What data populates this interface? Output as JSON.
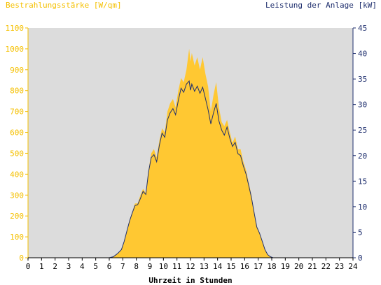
{
  "chart_data": {
    "type": "area",
    "ylabel_left": "Bestrahlungsstärke [W/qm]",
    "ylabel_right": "Leistung der Anlage [kW]",
    "xlabel": "Uhrzeit in Stunden",
    "xlim": [
      0,
      24
    ],
    "ylim_left": [
      0,
      1100
    ],
    "ylim_right": [
      0,
      45
    ],
    "x_ticks": [
      "0",
      "1",
      "2",
      "3",
      "4",
      "5",
      "6",
      "7",
      "8",
      "9",
      "10",
      "11",
      "12",
      "13",
      "14",
      "15",
      "16",
      "17",
      "18",
      "19",
      "20",
      "21",
      "22",
      "23",
      "24"
    ],
    "y_ticks_left": [
      "0",
      "100",
      "200",
      "300",
      "400",
      "500",
      "600",
      "700",
      "800",
      "900",
      "1000",
      "1100"
    ],
    "y_ticks_right": [
      "0",
      "5",
      "10",
      "15",
      "20",
      "25",
      "30",
      "35",
      "40",
      "45"
    ],
    "grid": false,
    "colors": {
      "irradiance": "#ffc832",
      "power": "#1f2f6e",
      "plot_bg": "#dcdcdc",
      "left_axis": "#f5c000",
      "right_axis": "#1f2f6e"
    },
    "series": [
      {
        "name": "Bestrahlungsstärke [W/qm]",
        "axis": "left",
        "x": [
          0,
          6.0,
          6.3,
          6.6,
          6.9,
          7.1,
          7.3,
          7.5,
          7.7,
          7.9,
          8.1,
          8.3,
          8.5,
          8.7,
          8.9,
          9.1,
          9.3,
          9.5,
          9.7,
          9.9,
          10.1,
          10.3,
          10.5,
          10.7,
          10.9,
          11.1,
          11.3,
          11.5,
          11.7,
          11.9,
          12.0,
          12.1,
          12.3,
          12.5,
          12.7,
          12.9,
          13.1,
          13.3,
          13.5,
          13.7,
          13.9,
          14.1,
          14.3,
          14.5,
          14.7,
          14.9,
          15.1,
          15.3,
          15.5,
          15.7,
          15.9,
          16.1,
          16.3,
          16.5,
          16.7,
          16.9,
          17.1,
          17.3,
          17.5,
          17.7,
          17.9,
          18.1,
          18.3,
          18.5,
          24
        ],
        "y": [
          0,
          0,
          5,
          20,
          40,
          80,
          130,
          180,
          220,
          260,
          260,
          300,
          330,
          310,
          420,
          500,
          520,
          480,
          560,
          620,
          600,
          700,
          740,
          760,
          720,
          800,
          860,
          840,
          900,
          1000,
          940,
          980,
          920,
          960,
          900,
          960,
          880,
          820,
          700,
          780,
          840,
          720,
          650,
          630,
          660,
          600,
          550,
          580,
          520,
          520,
          460,
          420,
          360,
          300,
          220,
          150,
          120,
          80,
          40,
          15,
          5,
          0,
          0,
          0,
          0
        ]
      },
      {
        "name": "Leistung der Anlage [kW]",
        "axis": "right",
        "x": [
          0,
          6.0,
          6.3,
          6.6,
          6.9,
          7.1,
          7.3,
          7.5,
          7.7,
          7.9,
          8.1,
          8.3,
          8.5,
          8.7,
          8.9,
          9.1,
          9.3,
          9.5,
          9.7,
          9.9,
          10.1,
          10.3,
          10.5,
          10.7,
          10.9,
          11.1,
          11.3,
          11.5,
          11.7,
          11.9,
          12.0,
          12.1,
          12.3,
          12.5,
          12.7,
          12.9,
          13.1,
          13.3,
          13.5,
          13.7,
          13.9,
          14.1,
          14.3,
          14.5,
          14.7,
          14.9,
          15.1,
          15.3,
          15.5,
          15.7,
          15.9,
          16.1,
          16.3,
          16.5,
          16.7,
          16.9,
          17.1,
          17.3,
          17.5,
          17.7,
          17.9,
          18.1,
          18.3,
          18.5,
          24
        ],
        "y": [
          0,
          0,
          0.2,
          0.8,
          1.6,
          3.2,
          5.2,
          7.2,
          8.8,
          10.2,
          10.4,
          11.6,
          13.0,
          12.4,
          16.8,
          19.6,
          20.2,
          18.8,
          22.0,
          24.4,
          23.6,
          27.0,
          28.4,
          29.2,
          28.0,
          30.8,
          33.2,
          32.4,
          34.0,
          34.6,
          32.8,
          34.0,
          32.6,
          33.6,
          32.2,
          33.4,
          31.2,
          29.0,
          26.2,
          28.4,
          30.2,
          26.8,
          25.0,
          24.0,
          25.6,
          23.4,
          21.8,
          22.6,
          20.4,
          20.0,
          18.0,
          16.4,
          14.2,
          11.8,
          8.8,
          6.0,
          4.8,
          3.2,
          1.6,
          0.6,
          0.2,
          0,
          0,
          0,
          0
        ]
      }
    ]
  }
}
